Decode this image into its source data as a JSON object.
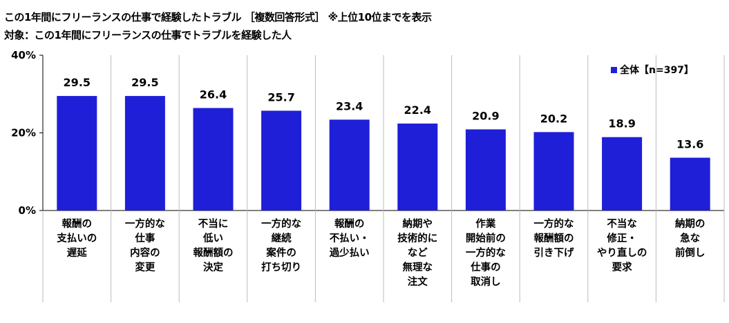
{
  "header": {
    "title": "この1年間にフリーランスの仕事で経験したトラブル ［複数回答形式］ ※上位10位までを表示",
    "subtitle": "対象：この1年間にフリーランスの仕事でトラブルを経験した人"
  },
  "colors": {
    "bar": "#1f1fd8",
    "axis": "#000000",
    "divider": "#bbbbbb"
  },
  "chart_data": {
    "type": "bar",
    "ylim": [
      0,
      40
    ],
    "yticks": [
      0,
      20,
      40
    ],
    "ytick_labels": [
      "0%",
      "20%",
      "40%"
    ],
    "grid": false,
    "legend_position": "top-right",
    "categories": [
      [
        "報酬の",
        "支払いの",
        "遅延"
      ],
      [
        "一方的な",
        "仕事",
        "内容の",
        "変更"
      ],
      [
        "不当に",
        "低い",
        "報酬額の",
        "決定"
      ],
      [
        "一方的な",
        "継続",
        "案件の",
        "打ち切り"
      ],
      [
        "報酬の",
        "不払い・",
        "過少払い"
      ],
      [
        "納期や",
        "技術的に",
        "など",
        "無理な",
        "注文"
      ],
      [
        "作業",
        "開始前の",
        "一方的な",
        "仕事の",
        "取消し"
      ],
      [
        "一方的な",
        "報酬額の",
        "引き下げ"
      ],
      [
        "不当な",
        "修正・",
        "やり直しの",
        "要求"
      ],
      [
        "納期の",
        "急な",
        "前倒し"
      ]
    ],
    "series": [
      {
        "name": "全体【n=397】",
        "values": [
          29.5,
          29.5,
          26.4,
          25.7,
          23.4,
          22.4,
          20.9,
          20.2,
          18.9,
          13.6
        ],
        "labels": [
          "29.5",
          "29.5",
          "26.4",
          "25.7",
          "23.4",
          "22.4",
          "20.9",
          "20.2",
          "18.9",
          "13.6"
        ]
      }
    ]
  }
}
